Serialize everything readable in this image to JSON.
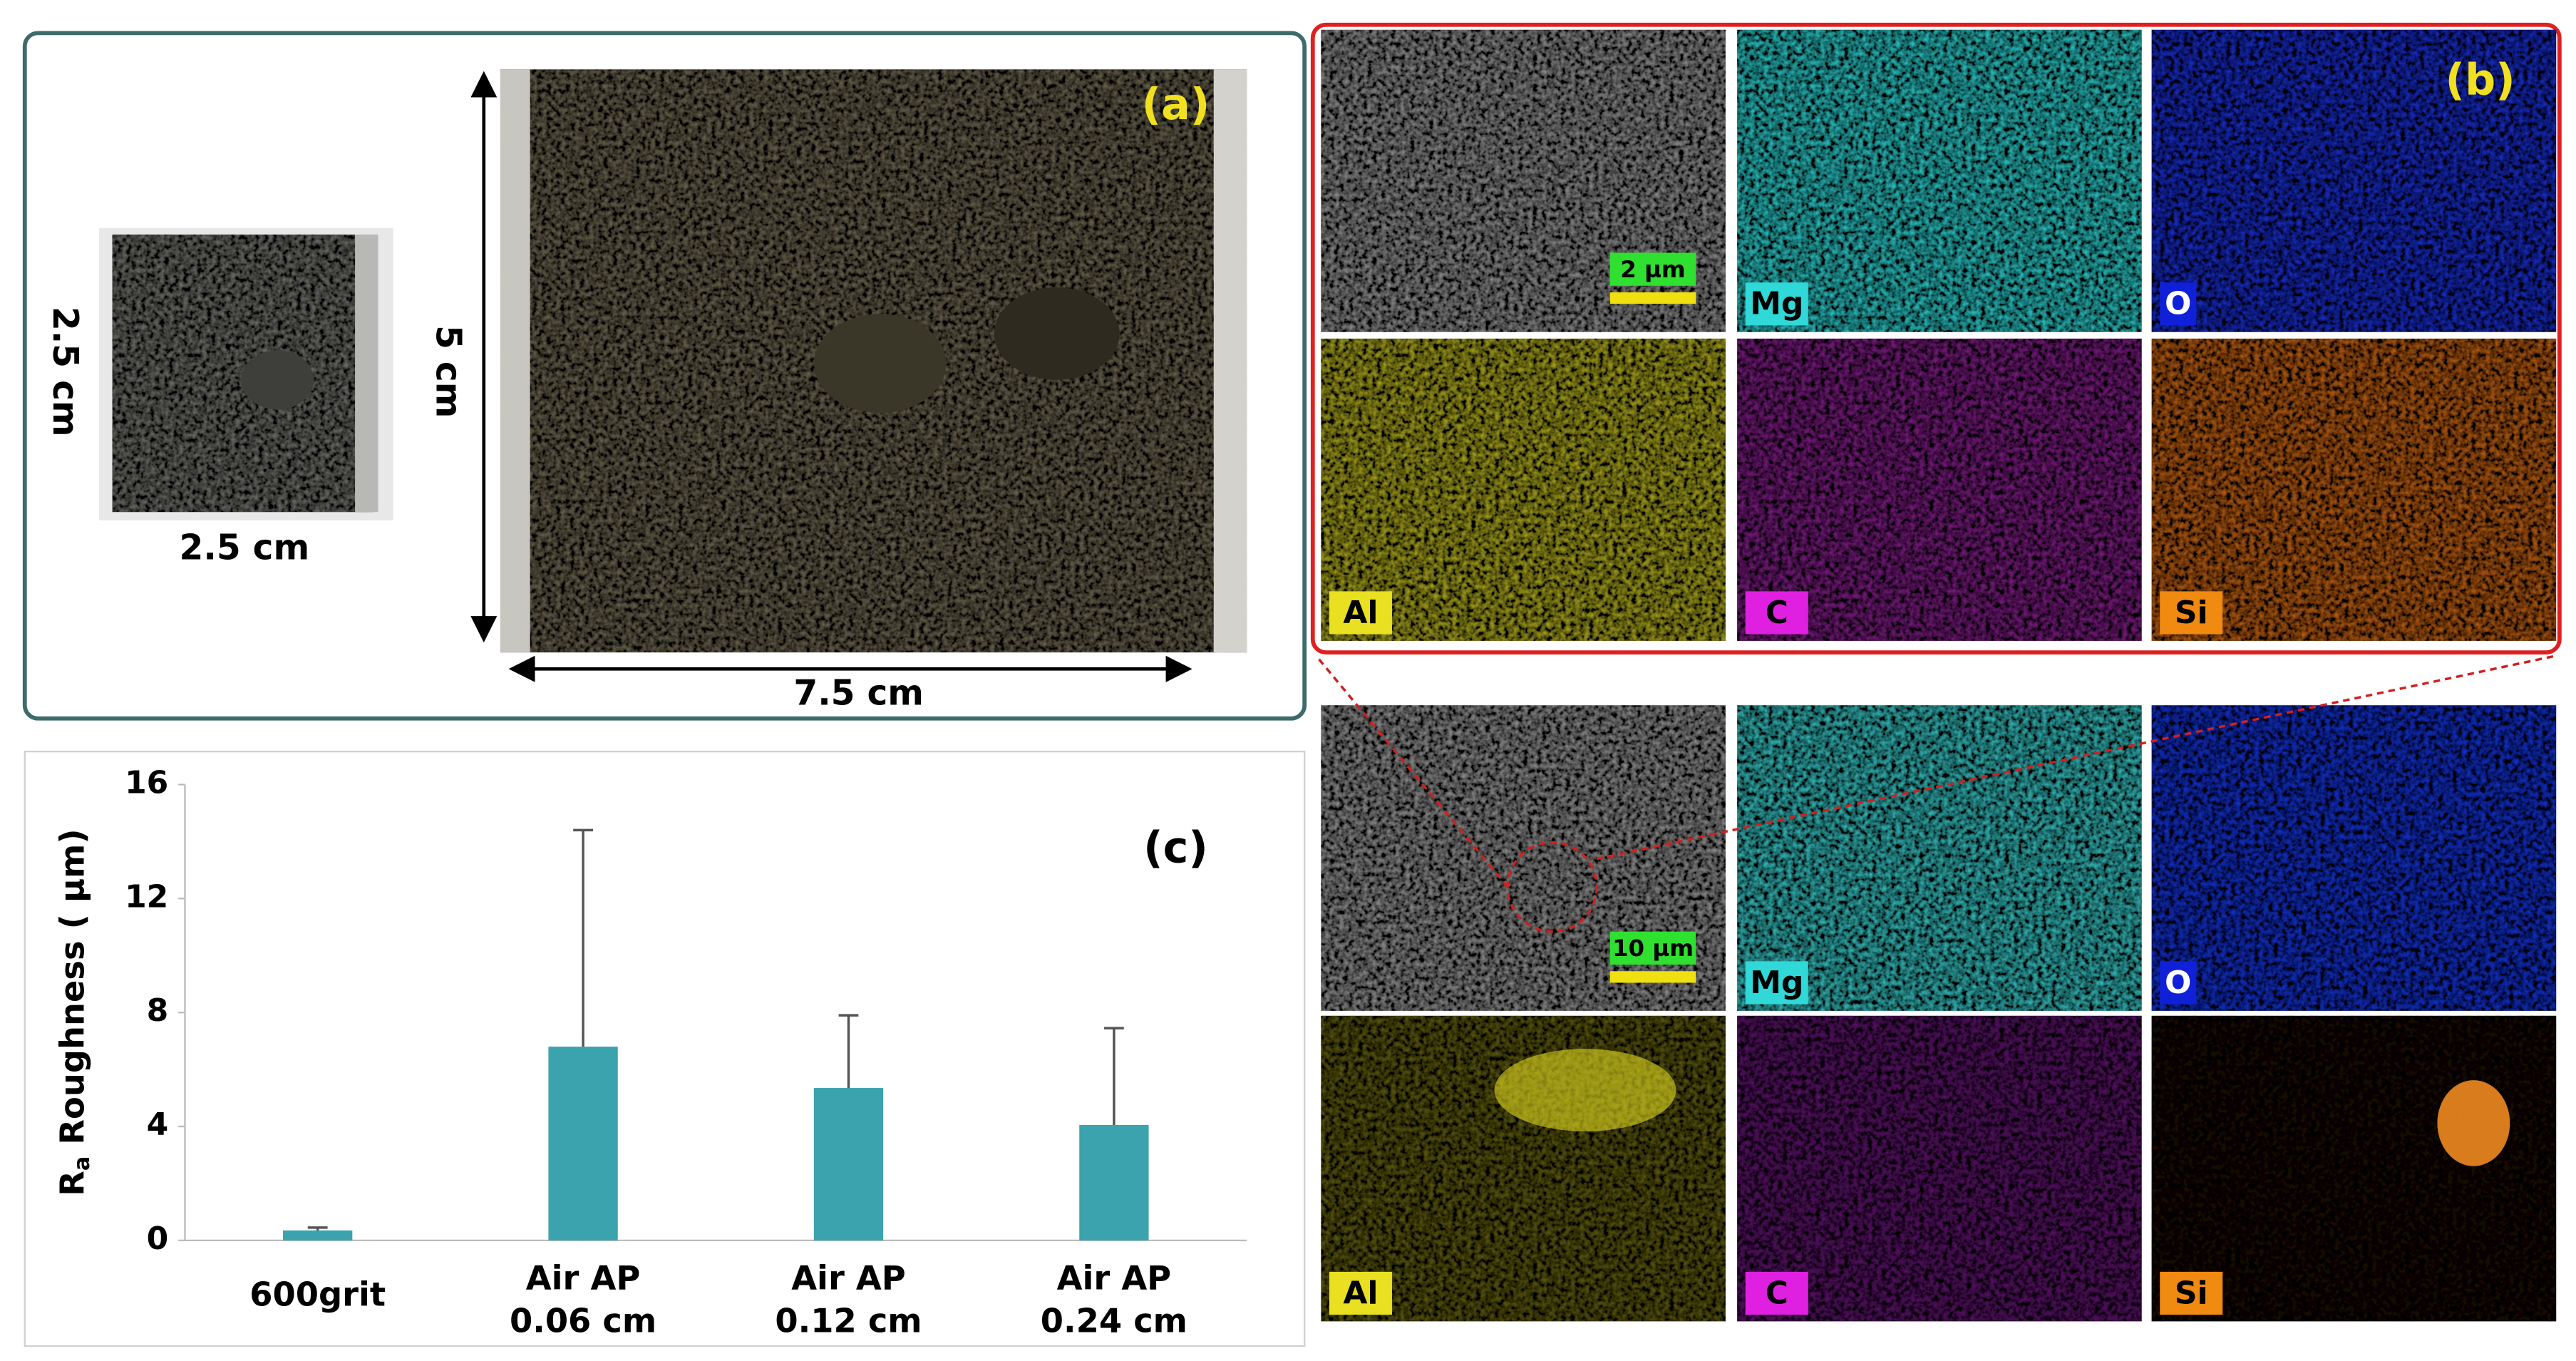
{
  "panel_a": {
    "label": "(a)",
    "small_height": "2.5 cm",
    "small_width": "2.5 cm",
    "large_height": "5 cm",
    "large_width": "7.5 cm"
  },
  "panel_b": {
    "label": "(b)",
    "top": {
      "scale_bar": "2 µm",
      "elements": [
        "Mg",
        "O",
        "Al",
        "C",
        "Si"
      ]
    },
    "bottom": {
      "scale_bar": "10 µm",
      "elements": [
        "Mg",
        "O",
        "Al",
        "C",
        "Si"
      ]
    }
  },
  "chart_data": {
    "type": "bar",
    "label": "(c)",
    "y_label": [
      "R",
      "a",
      " Roughness ( µm)"
    ],
    "categories": [
      "600grit",
      "Air AP\n0.06 cm",
      "Air AP\n0.12 cm",
      "Air AP\n0.24 cm"
    ],
    "values": [
      0.35,
      6.8,
      5.35,
      4.05
    ],
    "errors": [
      0.1,
      7.6,
      2.55,
      3.4
    ],
    "color": "#3aa3ad",
    "ylim": [
      0,
      16
    ],
    "yticks": [
      0,
      4,
      8,
      12,
      16
    ],
    "grid": false
  }
}
